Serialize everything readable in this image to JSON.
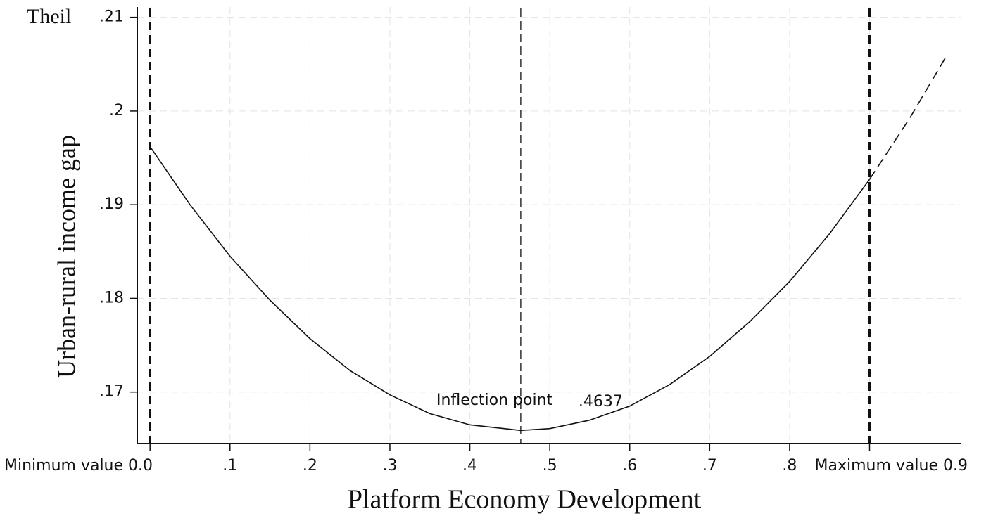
{
  "chart_data": {
    "type": "line",
    "y_unit_label": "Theil",
    "xlabel": "Platform Economy Development",
    "ylabel": "Urban-rural income gap",
    "annotation": "Inflection point",
    "xlim": [
      -0.016,
      1.014
    ],
    "ylim": [
      0.1645,
      0.2111
    ],
    "xticks": [
      {
        "value": 0,
        "label": "Minimum value 0.0"
      },
      {
        "value": 0.1,
        "label": ".1"
      },
      {
        "value": 0.2,
        "label": ".2"
      },
      {
        "value": 0.3,
        "label": ".3"
      },
      {
        "value": 0.4,
        "label": ".4"
      },
      {
        "value": 0.5,
        "label": ".5"
      },
      {
        "value": 0.6,
        "label": ".6"
      },
      {
        "value": 0.7,
        "label": ".7"
      },
      {
        "value": 0.8,
        "label": ".8"
      },
      {
        "value": 0.9,
        "label": "Maximum value 0.9"
      }
    ],
    "yticks": [
      {
        "value": 0.17,
        "label": ".17"
      },
      {
        "value": 0.18,
        "label": ".18"
      },
      {
        "value": 0.19,
        "label": ".19"
      },
      {
        "value": 0.2,
        "label": ".2"
      },
      {
        "value": 0.21,
        "label": ".21"
      }
    ],
    "grid": true,
    "color": "#111111",
    "series": [
      {
        "style": "solid",
        "x": [
          0,
          0.05,
          0.1,
          0.15,
          0.2,
          0.25,
          0.3,
          0.35,
          0.4,
          0.4637,
          0.5,
          0.55,
          0.6,
          0.65,
          0.7,
          0.75,
          0.8,
          0.85,
          0.9
        ],
        "values": [
          0.1962,
          0.19,
          0.1845,
          0.1798,
          0.1757,
          0.1723,
          0.1697,
          0.1677,
          0.1665,
          0.1659,
          0.1661,
          0.167,
          0.1685,
          0.1708,
          0.1738,
          0.1775,
          0.1818,
          0.1869,
          0.1927
        ]
      },
      {
        "style": "dashed",
        "x": [
          0.9,
          0.95,
          0.995
        ],
        "values": [
          0.1927,
          0.1992,
          0.2057
        ]
      }
    ],
    "vlines": [
      {
        "value": 0,
        "style": "thick"
      },
      {
        "value": 0.4637,
        "label": ".4637",
        "style": "thin"
      },
      {
        "value": 0.9,
        "style": "thick"
      }
    ]
  }
}
